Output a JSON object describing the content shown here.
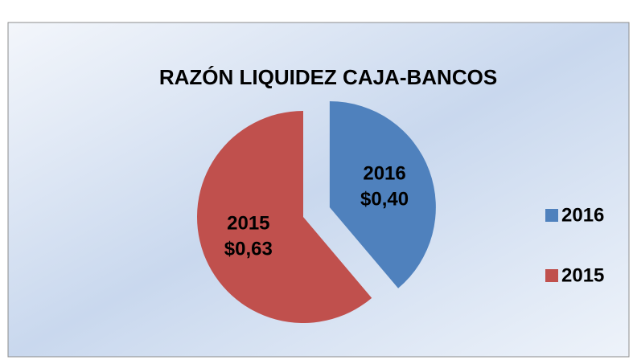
{
  "chart_data": {
    "type": "pie",
    "title": "RAZÓN LIQUIDEZ CAJA-BANCOS",
    "categories": [
      "2016",
      "2015"
    ],
    "values": [
      0.4,
      0.63
    ],
    "value_labels": [
      "$0,40",
      "$0,63"
    ],
    "colors": [
      "#4f81bd",
      "#c0504d"
    ],
    "exploded": [
      true,
      false
    ],
    "legend": "right"
  }
}
